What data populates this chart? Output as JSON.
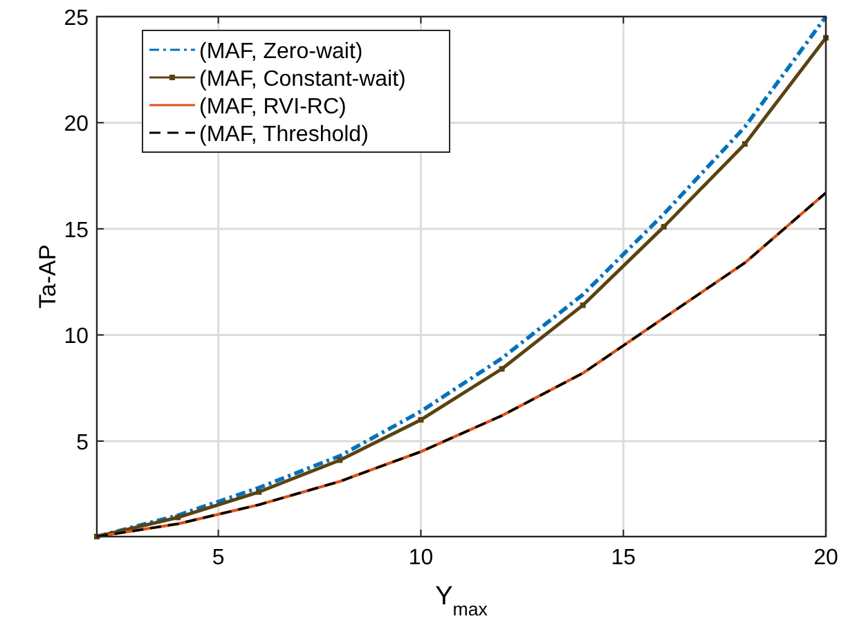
{
  "chart_data": {
    "type": "line",
    "xlabel": "Y$_{max}$",
    "ylabel": "Ta-AP",
    "x": [
      2,
      4,
      6,
      8,
      10,
      12,
      14,
      16,
      18,
      20
    ],
    "series": [
      {
        "name": "(MAF, Zero-wait)",
        "color": "#0072bd",
        "line_style": "dashdot",
        "marker": "none",
        "values": [
          0.5,
          1.5,
          2.8,
          4.3,
          6.4,
          8.9,
          11.9,
          15.7,
          19.8,
          25.0
        ]
      },
      {
        "name": "(MAF, Constant-wait)",
        "color": "#5a4312",
        "line_style": "solid",
        "marker": "square",
        "values": [
          0.5,
          1.4,
          2.6,
          4.1,
          6.0,
          8.4,
          11.4,
          15.1,
          19.0,
          24.0
        ]
      },
      {
        "name": "(MAF, RVI-RC)",
        "color": "#d95319",
        "line_style": "solid",
        "marker": "none",
        "values": [
          0.5,
          1.1,
          2.0,
          3.1,
          4.5,
          6.2,
          8.2,
          10.8,
          13.4,
          16.7
        ]
      },
      {
        "name": "(MAF, Threshold)",
        "color": "#000000",
        "line_style": "dashed",
        "marker": "none",
        "values": [
          0.5,
          1.1,
          2.0,
          3.1,
          4.5,
          6.2,
          8.2,
          10.8,
          13.4,
          16.7
        ]
      }
    ],
    "xlim": [
      2,
      20
    ],
    "xticks": [
      5,
      10,
      15,
      20
    ],
    "ylim": [
      0.5,
      25
    ],
    "yticks": [
      5,
      10,
      15,
      20,
      25
    ],
    "grid": true,
    "legend": "top left"
  }
}
